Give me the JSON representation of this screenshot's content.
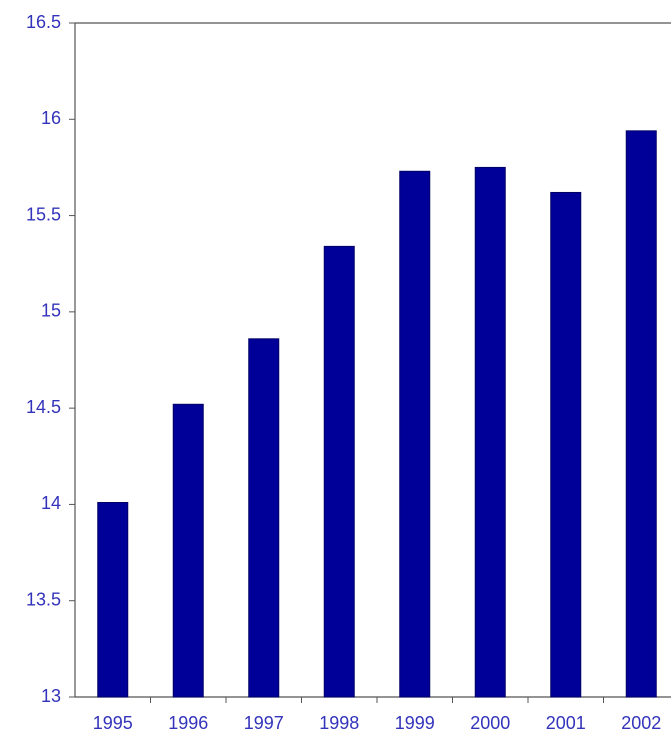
{
  "chart_data": {
    "type": "bar",
    "categories": [
      "1995",
      "1996",
      "1997",
      "1998",
      "1999",
      "2000",
      "2001",
      "2002"
    ],
    "values": [
      14.01,
      14.52,
      14.86,
      15.34,
      15.73,
      15.75,
      15.62,
      15.94
    ],
    "color": "#000099",
    "ylim": [
      13,
      16.5
    ],
    "yticks": [
      13,
      13.5,
      14,
      14.5,
      15,
      15.5,
      16,
      16.5
    ],
    "grid": false
  }
}
